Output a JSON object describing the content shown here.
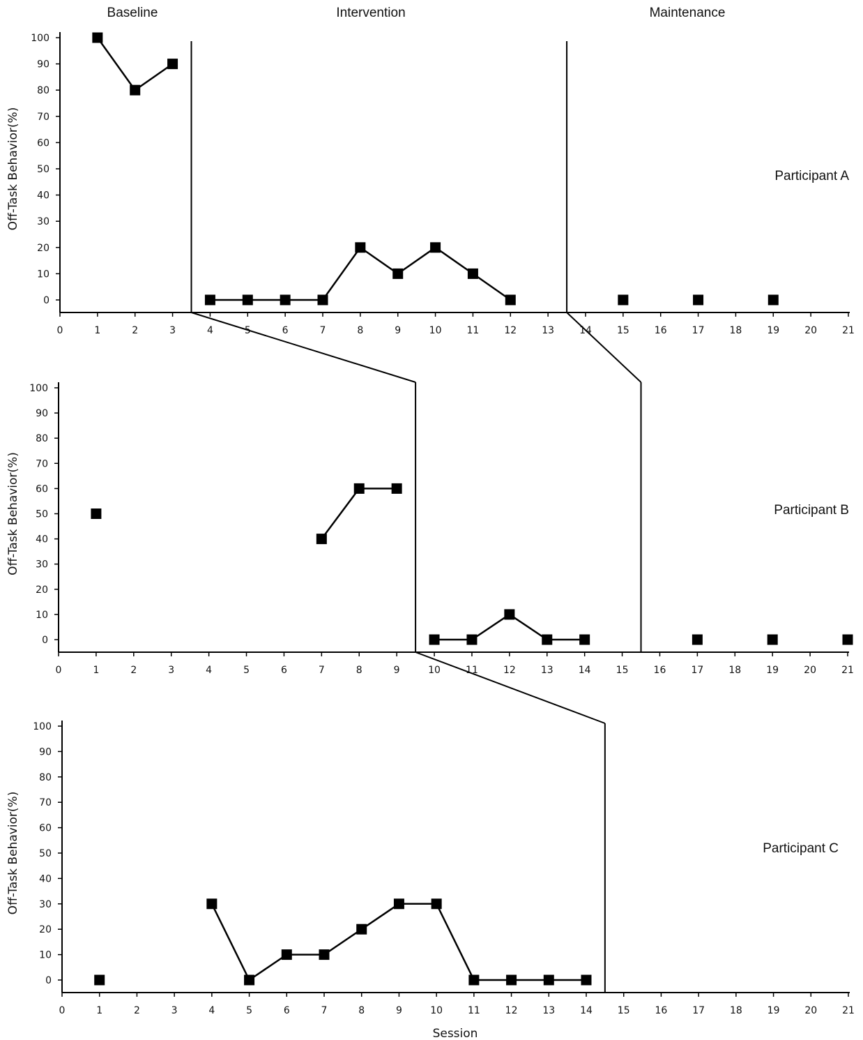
{
  "chart_data": {
    "type": "line",
    "design": "multiple-baseline single-case design",
    "phases": [
      "Baseline",
      "Intervention",
      "Maintenance"
    ],
    "xlabel": "Session",
    "ylabel": "Off-Task Behavior(%)",
    "xlim": [
      0,
      21
    ],
    "ylim": [
      0,
      100
    ],
    "yticks": [
      0,
      10,
      20,
      30,
      40,
      50,
      60,
      70,
      80,
      90,
      100
    ],
    "xticks": [
      0,
      1,
      2,
      3,
      4,
      5,
      6,
      7,
      8,
      9,
      10,
      11,
      12,
      13,
      14,
      15,
      16,
      17,
      18,
      19,
      20,
      21
    ],
    "marker": "filled-square",
    "line_color": "#000000",
    "panels": [
      {
        "name": "Participant A",
        "phase_change_sessions": [
          3.5,
          13.5
        ],
        "segments": [
          [
            [
              1,
              100
            ],
            [
              2,
              80
            ],
            [
              3,
              90
            ]
          ],
          [
            [
              4,
              0
            ],
            [
              5,
              0
            ],
            [
              6,
              0
            ],
            [
              7,
              0
            ],
            [
              8,
              20
            ],
            [
              9,
              10
            ],
            [
              10,
              20
            ],
            [
              11,
              10
            ],
            [
              12,
              0
            ]
          ],
          [
            [
              15,
              0
            ]
          ],
          [
            [
              17,
              0
            ]
          ],
          [
            [
              19,
              0
            ]
          ]
        ]
      },
      {
        "name": "Participant B",
        "phase_change_sessions": [
          9.5,
          15.5
        ],
        "segments": [
          [
            [
              1,
              50
            ]
          ],
          [
            [
              7,
              40
            ],
            [
              8,
              60
            ],
            [
              9,
              60
            ]
          ],
          [
            [
              10,
              0
            ],
            [
              11,
              0
            ],
            [
              12,
              10
            ],
            [
              13,
              0
            ],
            [
              14,
              0
            ]
          ],
          [
            [
              17,
              0
            ]
          ],
          [
            [
              19,
              0
            ]
          ],
          [
            [
              21,
              0
            ]
          ]
        ]
      },
      {
        "name": "Participant C",
        "phase_change_sessions": [
          14.5
        ],
        "segments": [
          [
            [
              1,
              0
            ]
          ],
          [
            [
              4,
              30
            ],
            [
              5,
              0
            ],
            [
              6,
              10
            ],
            [
              7,
              10
            ],
            [
              8,
              20
            ],
            [
              9,
              30
            ],
            [
              10,
              30
            ],
            [
              11,
              0
            ],
            [
              12,
              0
            ],
            [
              13,
              0
            ],
            [
              14,
              0
            ]
          ]
        ]
      }
    ]
  }
}
